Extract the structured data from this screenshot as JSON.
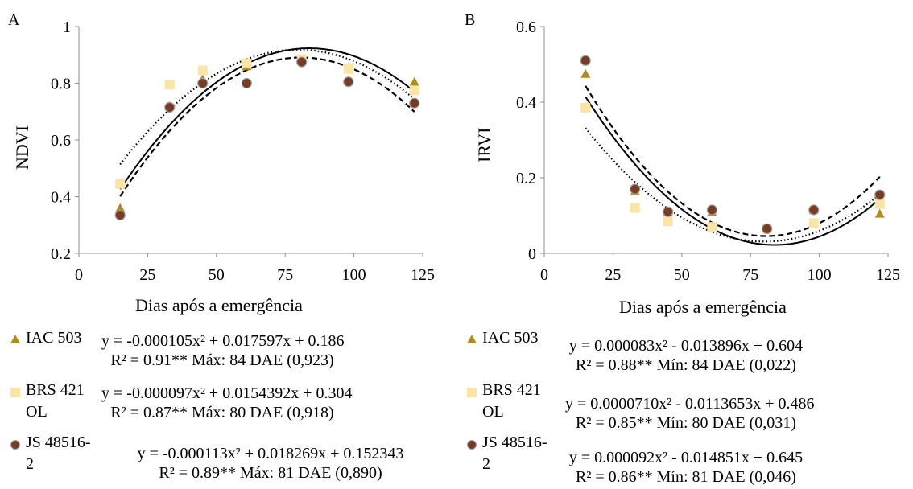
{
  "chart_data": [
    {
      "panel_label": "A",
      "type": "scatter",
      "xlabel": "Dias após a emergência",
      "ylabel": "NDVI",
      "xlim": [
        0,
        125
      ],
      "ylim": [
        0.2,
        1
      ],
      "xticks": [
        "0",
        "25",
        "50",
        "75",
        "100",
        "125"
      ],
      "yticks": [
        "0.2",
        "0.4",
        "0.6",
        "0.8",
        "1"
      ],
      "grid": false,
      "series": [
        {
          "name": "IAC 503",
          "marker": "triangle",
          "color": "#b08c1e",
          "line": "solid",
          "x": [
            15,
            33,
            45,
            61,
            81,
            98,
            122
          ],
          "y": [
            0.36,
            0.72,
            0.815,
            0.86,
            0.885,
            0.855,
            0.805
          ],
          "fit": {
            "a": -0.000105,
            "b": 0.017597,
            "c": 0.186
          },
          "equation": "y = -0.000105x² + 0.017597x + 0.186",
          "stats": "R² = 0.91**  Máx: 84 DAE (0,923)"
        },
        {
          "name": "BRS 421 OL",
          "marker": "square",
          "color": "#fae5a6",
          "line": "dotted",
          "x": [
            15,
            33,
            45,
            61,
            81,
            98,
            122
          ],
          "y": [
            0.445,
            0.795,
            0.845,
            0.87,
            0.885,
            0.85,
            0.775
          ],
          "fit": {
            "a": -9.7e-05,
            "b": 0.0154392,
            "c": 0.304
          },
          "equation": "y = -0.000097x² + 0.0154392x + 0.304",
          "stats": "R² = 0.87**  Máx: 80 DAE (0,918)"
        },
        {
          "name": "JS 48516-2",
          "marker": "circle",
          "color": "#7a3b24",
          "line": "dashed",
          "x": [
            15,
            33,
            45,
            61,
            81,
            98,
            122
          ],
          "y": [
            0.335,
            0.715,
            0.8,
            0.8,
            0.875,
            0.805,
            0.73
          ],
          "fit": {
            "a": -0.000113,
            "b": 0.018269,
            "c": 0.152343
          },
          "equation": "y = -0.000113x² + 0.018269x + 0.152343",
          "stats": "R² = 0.89**  Máx: 81 DAE (0,890)"
        }
      ]
    },
    {
      "panel_label": "B",
      "type": "scatter",
      "xlabel": "Dias após a emergência",
      "ylabel": "IRVI",
      "xlim": [
        0,
        125
      ],
      "ylim": [
        0,
        0.6
      ],
      "xticks": [
        "0",
        "25",
        "50",
        "75",
        "100",
        "125"
      ],
      "yticks": [
        "0",
        "0.2",
        "0.4",
        "0.6"
      ],
      "grid": false,
      "series": [
        {
          "name": "IAC 503",
          "marker": "triangle",
          "color": "#b08c1e",
          "line": "solid",
          "x": [
            15,
            33,
            45,
            61,
            81,
            98,
            122
          ],
          "y": [
            0.475,
            0.165,
            0.11,
            0.11,
            0.065,
            0.115,
            0.105
          ],
          "fit": {
            "a": 8.3e-05,
            "b": -0.013896,
            "c": 0.604
          },
          "equation": "y = 0.000083x² - 0.013896x + 0.604",
          "stats": "R² = 0.88**  Mín: 84 DAE (0,022)"
        },
        {
          "name": "BRS 421 OL",
          "marker": "square",
          "color": "#fae5a6",
          "line": "dotted",
          "x": [
            15,
            33,
            45,
            61,
            81,
            98,
            122
          ],
          "y": [
            0.385,
            0.12,
            0.085,
            0.07,
            0.065,
            0.08,
            0.13
          ],
          "fit": {
            "a": 7.1e-05,
            "b": -0.0113653,
            "c": 0.486
          },
          "equation": "y = 0.0000710x² - 0.0113653x + 0.486",
          "stats": "R² = 0.85**  Mín: 80 DAE (0,031)"
        },
        {
          "name": "JS 48516-2",
          "marker": "circle",
          "color": "#7a3b24",
          "line": "dashed",
          "x": [
            15,
            33,
            45,
            61,
            81,
            98,
            122
          ],
          "y": [
            0.51,
            0.17,
            0.11,
            0.115,
            0.065,
            0.115,
            0.155
          ],
          "fit": {
            "a": 9.2e-05,
            "b": -0.014851,
            "c": 0.645
          },
          "equation": "y = 0.000092x² - 0.014851x + 0.645",
          "stats": "R² = 0.86**  Mín: 81 DAE (0,046)"
        }
      ]
    }
  ],
  "legend_names": {
    "iac": "IAC 503",
    "brs_1": "BRS 421",
    "brs_2": "OL",
    "js_1": "JS 48516-",
    "js_2": "2"
  }
}
